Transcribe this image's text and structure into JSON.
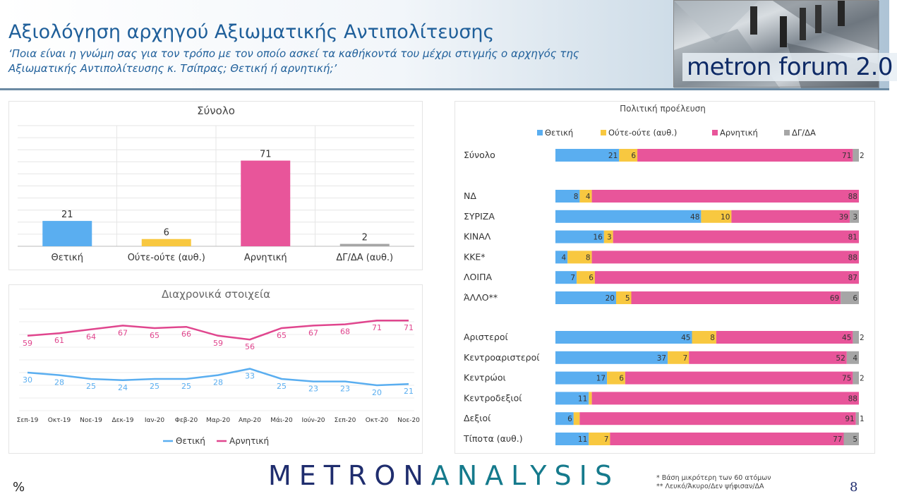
{
  "header": {
    "title": "Αξιολόγηση αρχηγού Αξιωματικής Αντιπολίτευσης",
    "subtitle": "‘Ποια είναι η γνώμη σας για τον τρόπο με τον οποίο ασκεί τα καθήκοντά του μέχρι στιγμής ο αρχηγός της Αξιωματικής Αντιπολίτευσης κ. Τσίπρας; Θετική ή αρνητική;’",
    "logo_text": "metron forum 2.0"
  },
  "colors": {
    "positive": "#5aaef0",
    "neutral": "#f8c840",
    "negative": "#e8559a",
    "dk": "#a6a6a6",
    "line_positive": "#5aaef0",
    "line_negative": "#e0468e"
  },
  "chart_data": [
    {
      "id": "total",
      "type": "bar",
      "title": "Σύνολο",
      "categories": [
        "Θετική",
        "Ούτε-ούτε (αυθ.)",
        "Αρνητική",
        "ΔΓ/ΔΑ (αυθ.)"
      ],
      "values": [
        21,
        6,
        71,
        2
      ],
      "ylim": [
        0,
        100
      ],
      "grid": true
    },
    {
      "id": "trend",
      "type": "line",
      "title": "Διαχρονικά στοιχεία",
      "categories": [
        "Σεπ-19",
        "Οκτ-19",
        "Νοε-19",
        "Δεκ-19",
        "Ιαν-20",
        "Φεβ-20",
        "Μαρ-20",
        "Απρ-20",
        "Μάι-20",
        "Ιούν-20",
        "Σεπ-20",
        "Οκτ-20",
        "Νοε-20"
      ],
      "series": [
        {
          "name": "Θετική",
          "values": [
            30,
            28,
            25,
            24,
            25,
            25,
            28,
            33,
            25,
            23,
            23,
            20,
            21
          ]
        },
        {
          "name": "Αρνητική",
          "values": [
            59,
            61,
            64,
            67,
            65,
            66,
            59,
            56,
            65,
            67,
            68,
            71,
            71
          ]
        }
      ],
      "ylim": [
        0,
        80
      ],
      "legend": "bottom",
      "grid": true
    },
    {
      "id": "political",
      "type": "bar",
      "orientation": "horizontal-stacked",
      "title": "Πολιτική προέλευση",
      "series_names": [
        "Θετική",
        "Ούτε-ούτε (αυθ.)",
        "Αρνητική",
        "ΔΓ/ΔΑ"
      ],
      "legend": "top",
      "groups": [
        [
          {
            "label": "Σύνολο",
            "values": [
              21,
              6,
              71,
              2
            ]
          }
        ],
        [
          {
            "label": "ΝΔ",
            "values": [
              8,
              4,
              88,
              null
            ]
          },
          {
            "label": "ΣΥΡΙΖΑ",
            "values": [
              48,
              10,
              39,
              3
            ]
          },
          {
            "label": "ΚΙΝΑΛ",
            "values": [
              16,
              3,
              81,
              null
            ]
          },
          {
            "label": "ΚΚΕ*",
            "values": [
              4,
              8,
              88,
              null
            ]
          },
          {
            "label": "ΛΟΙΠΑ",
            "values": [
              7,
              6,
              87,
              null
            ]
          },
          {
            "label": "ΆΛΛΟ**",
            "values": [
              20,
              5,
              69,
              6
            ]
          }
        ],
        [
          {
            "label": "Αριστεροί",
            "values": [
              45,
              8,
              45,
              2
            ]
          },
          {
            "label": "Κεντροαριστεροί",
            "values": [
              37,
              7,
              52,
              4
            ]
          },
          {
            "label": "Κεντρώοι",
            "values": [
              17,
              6,
              75,
              2
            ]
          },
          {
            "label": "Κεντροδεξιοί",
            "values": [
              11,
              1,
              88,
              null
            ]
          },
          {
            "label": "Δεξιοί",
            "values": [
              6,
              2,
              91,
              1
            ]
          },
          {
            "label": "Τίποτα (αυθ.)",
            "values": [
              11,
              7,
              77,
              5
            ]
          }
        ]
      ]
    }
  ],
  "footer": {
    "unit": "%",
    "brand_part1": "METRON",
    "brand_part2": "ANALYSIS",
    "note1": "*  Βάση μικρότερη των 60 ατόμων",
    "note2": "** Λευκό/Άκυρο/Δεν ψήφισαν/ΔΑ",
    "page": "8"
  }
}
